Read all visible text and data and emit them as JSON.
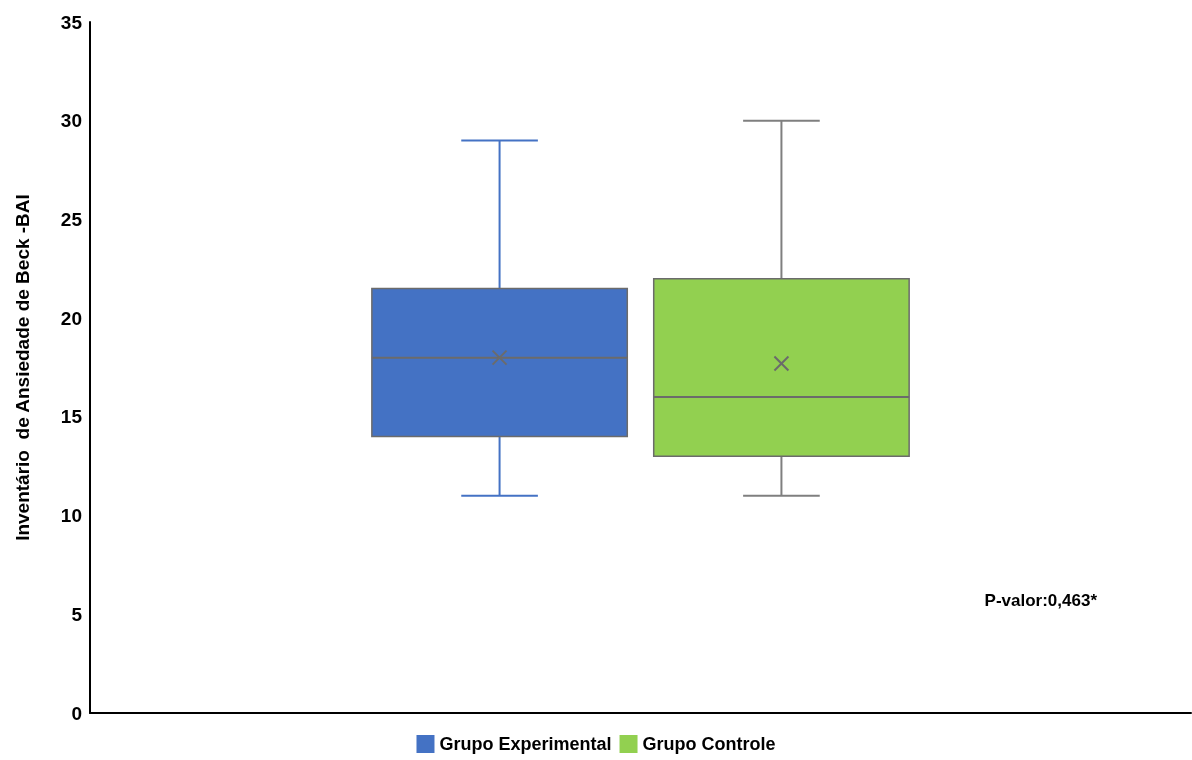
{
  "chart_data": {
    "type": "box",
    "ylabel": "Inventário  de Ansiedade de Beck -BAI",
    "categories": [
      null
    ],
    "series": [
      {
        "name": "Grupo Experimental",
        "color": "#4472c4",
        "boxes": [
          {
            "low": 11,
            "q1": 14,
            "median": 18,
            "q3": 21.5,
            "high": 29,
            "mean": 18
          }
        ]
      },
      {
        "name": "Grupo Controle",
        "color": "#92d050",
        "boxes": [
          {
            "low": 11,
            "q1": 13,
            "median": 16,
            "q3": 22,
            "high": 30,
            "mean": 17.7
          }
        ]
      }
    ],
    "ylim": [
      0,
      35
    ],
    "yticks": [
      0,
      5,
      10,
      15,
      20,
      25,
      30,
      35
    ],
    "grid": false,
    "legend": "bottom",
    "annotations": [
      "P-valor:0,463*"
    ]
  }
}
